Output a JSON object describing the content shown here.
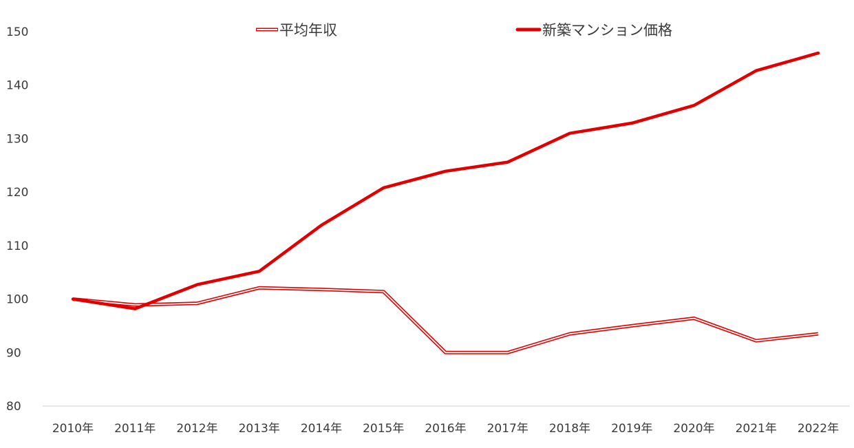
{
  "chart_data": {
    "type": "line",
    "categories": [
      "2010年",
      "2011年",
      "2012年",
      "2013年",
      "2014年",
      "2015年",
      "2016年",
      "2017年",
      "2018年",
      "2019年",
      "2020年",
      "2021年",
      "2022年"
    ],
    "series": [
      {
        "name": "平均年収",
        "style": "double-outline",
        "color": "#e00000",
        "values": [
          100.0,
          98.9,
          99.2,
          102.1,
          101.8,
          101.4,
          90.0,
          90.0,
          93.5,
          95.0,
          96.4,
          92.2,
          93.5
        ]
      },
      {
        "name": "新築マンション価格",
        "style": "thick",
        "color": "#e00000",
        "values": [
          100.0,
          98.2,
          102.7,
          105.2,
          113.8,
          120.8,
          123.9,
          125.6,
          131.0,
          132.9,
          136.2,
          142.7,
          146.0
        ]
      }
    ],
    "ylim": [
      80,
      150
    ],
    "yticks": [
      "80",
      "90",
      "100",
      "110",
      "120",
      "130",
      "140",
      "150"
    ],
    "grid": false,
    "legend_position": "top",
    "axis_color": "#d9d9d9"
  }
}
